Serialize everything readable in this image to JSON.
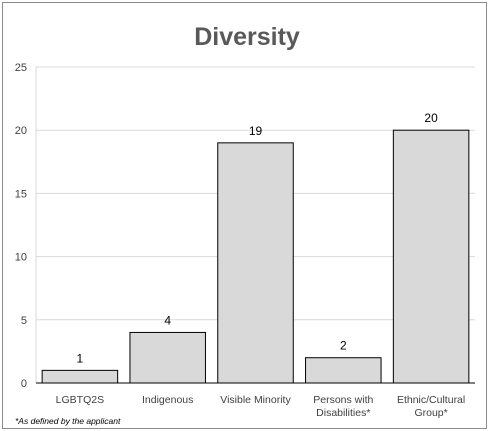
{
  "chart_data": {
    "type": "bar",
    "title": "Diversity",
    "categories": [
      [
        "LGBTQ2S"
      ],
      [
        "Indigenous"
      ],
      [
        "Visible Minority"
      ],
      [
        "Persons with",
        "Disabilities*"
      ],
      [
        "Ethnic/Cultural",
        "Group*"
      ]
    ],
    "values": [
      1,
      4,
      19,
      2,
      20
    ],
    "ylim": [
      0,
      25
    ],
    "yticks": [
      0,
      5,
      10,
      15,
      20,
      25
    ],
    "grid": true,
    "data_labels": true,
    "colors": {
      "bar_fill": "#d9d9d9",
      "bar_stroke": "#000000",
      "grid": "#d9d9d9"
    }
  },
  "footnote": "*As defined by the applicant"
}
